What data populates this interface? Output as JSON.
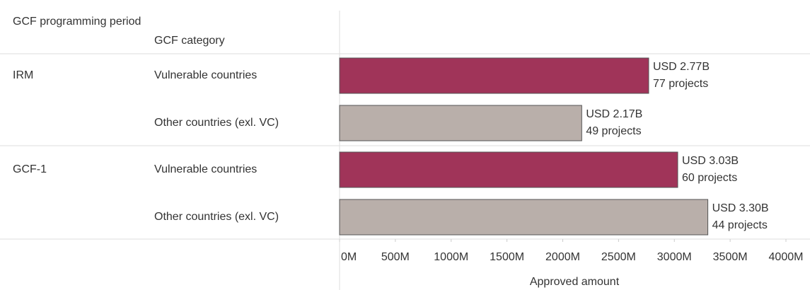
{
  "chart_data": {
    "type": "bar",
    "column_headers": [
      "GCF programming period",
      "GCF category"
    ],
    "periods": [
      "IRM",
      "GCF-1"
    ],
    "categories": [
      "Vulnerable countries",
      "Other countries (exl. VC)",
      "Vulnerable countries",
      "Other countries (exl. VC)"
    ],
    "values": [
      2770,
      2170,
      3030,
      3300
    ],
    "value_labels": [
      "USD 2.77B",
      "USD 2.17B",
      "USD 3.03B",
      "USD 3.30B"
    ],
    "count_labels": [
      "77 projects",
      "49 projects",
      "60 projects",
      "44 projects"
    ],
    "colors": [
      "#a03459",
      "#b9afaa",
      "#a03459",
      "#b9afaa"
    ],
    "x_label": "Approved amount",
    "xlim": [
      0,
      4000
    ],
    "xticks": [
      {
        "value": 0,
        "label": "0M"
      },
      {
        "value": 500,
        "label": "500M"
      },
      {
        "value": 1000,
        "label": "1000M"
      },
      {
        "value": 1500,
        "label": "1500M"
      },
      {
        "value": 2000,
        "label": "2000M"
      },
      {
        "value": 2500,
        "label": "2500M"
      },
      {
        "value": 3000,
        "label": "3000M"
      },
      {
        "value": 3500,
        "label": "3500M"
      },
      {
        "value": 4000,
        "label": "4000M"
      }
    ]
  }
}
